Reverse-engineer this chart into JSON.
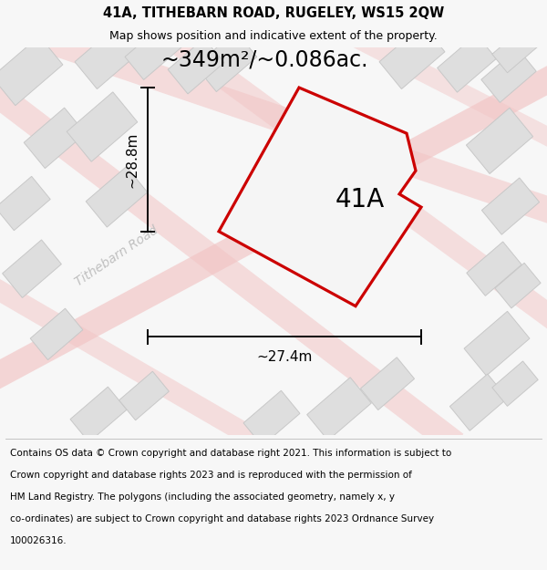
{
  "title_line1": "41A, TITHEBARN ROAD, RUGELEY, WS15 2QW",
  "title_line2": "Map shows position and indicative extent of the property.",
  "area_label": "~349m²/~0.086ac.",
  "plot_label": "41A",
  "dim_width": "~27.4m",
  "dim_height": "~28.8m",
  "road_label": "Tithebarn Road",
  "footer_line1": "Contains OS data © Crown copyright and database right 2021. This information is subject to",
  "footer_line2": "Crown copyright and database rights 2023 and is reproduced with the permission of",
  "footer_line3": "HM Land Registry. The polygons (including the associated geometry, namely x, y",
  "footer_line4": "co-ordinates) are subject to Crown copyright and database rights 2023 Ordnance Survey",
  "footer_line5": "100026316.",
  "bg_color": "#f7f7f7",
  "map_bg": "#ebebeb",
  "plot_fill": "#f5f5f5",
  "plot_edge": "#cc0000",
  "road_color": "#f2c4c4",
  "building_fill": "#dedede",
  "building_edge": "#c8c8c8",
  "title_fontsize": 10.5,
  "subtitle_fontsize": 9.0,
  "area_fontsize": 17,
  "plot_label_fontsize": 20,
  "dim_fontsize": 11,
  "road_label_fontsize": 10,
  "footer_fontsize": 7.5
}
